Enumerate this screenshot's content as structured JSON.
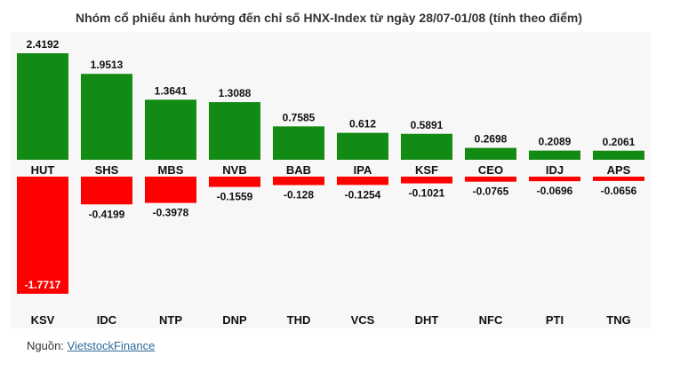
{
  "chart_data": {
    "type": "bar",
    "title": "Nhóm cổ phiếu ảnh hưởng đến chỉ số HNX-Index từ ngày 28/07-01/08 (tính theo điểm)",
    "series": [
      {
        "categories": [
          "HUT",
          "SHS",
          "MBS",
          "NVB",
          "BAB",
          "IPA",
          "KSF",
          "CEO",
          "IDJ",
          "APS"
        ],
        "values": [
          2.4192,
          1.9513,
          1.3641,
          1.3088,
          0.7585,
          0.612,
          0.5891,
          0.2698,
          0.2089,
          0.2061
        ],
        "labels": [
          "2.4192",
          "1.9513",
          "1.3641",
          "1.3088",
          "0.7585",
          "0.612",
          "0.5891",
          "0.2698",
          "0.2089",
          "0.2061"
        ],
        "color": "#138a13"
      },
      {
        "categories": [
          "KSV",
          "IDC",
          "NTP",
          "DNP",
          "THD",
          "VCS",
          "DHT",
          "NFC",
          "PTI",
          "TNG"
        ],
        "values": [
          -1.7717,
          -0.4199,
          -0.3978,
          -0.1559,
          -0.128,
          -0.1254,
          -0.1021,
          -0.0765,
          -0.0696,
          -0.0656
        ],
        "labels": [
          "-1.7717",
          "-0.4199",
          "-0.3978",
          "-0.1559",
          "-0.128",
          "-0.1254",
          "-0.1021",
          "-0.0765",
          "-0.0696",
          "-0.0656"
        ],
        "color": "#ff0000"
      }
    ],
    "legend": "none",
    "grid": false
  },
  "source": {
    "prefix": "Nguồn: ",
    "link_text": "VietstockFinance"
  }
}
